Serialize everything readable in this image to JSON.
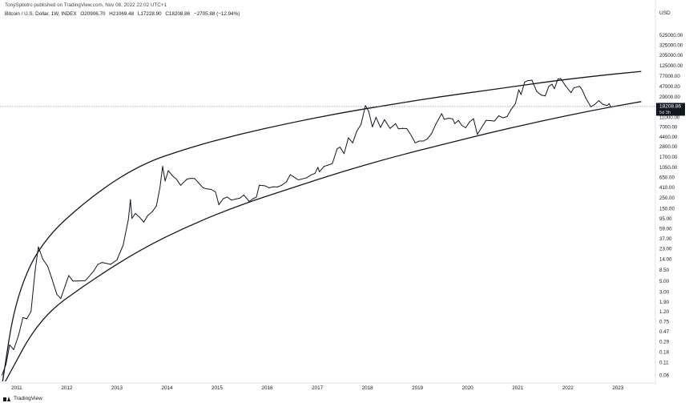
{
  "header": {
    "attribution": "TonySpilotro published on TradingView.com, Nov 08, 2022 22:02 UTC+1",
    "symbol": "Bitcoin / U.S. Dollar, 1W, INDEX",
    "open": "O20906.70",
    "high": "H21069.48",
    "low": "L17228.90",
    "close": "C18208.86",
    "change": "−2705.88 (−12.94%)"
  },
  "footer": {
    "brand": "TradingView"
  },
  "price_label": {
    "value": "18208.86",
    "countdown": "5d 3h"
  },
  "colors": {
    "line": "#131722",
    "axis_text": "#131722",
    "grid": "#e0e3eb",
    "label_bg": "#131722",
    "hline": "#787b86"
  },
  "chart_data": {
    "type": "line",
    "currency": "USD",
    "y_scale": "log",
    "ylim": [
      0.045,
      1100000
    ],
    "xlim": [
      "2010-09-01",
      "2023-10-01"
    ],
    "grid": false,
    "ytick_labels": [
      "525000.00",
      "325000.00",
      "205000.00",
      "125000.00",
      "77000.00",
      "47000.00",
      "29000.00",
      "11000.00",
      "7000.00",
      "4400.00",
      "2800.00",
      "1700.00",
      "1050.00",
      "650.00",
      "410.00",
      "250.00",
      "150.00",
      "95.00",
      "59.00",
      "37.00",
      "23.00",
      "14.00",
      "8.50",
      "5.00",
      "3.00",
      "1.90",
      "1.20",
      "0.75",
      "0.47",
      "0.29",
      "0.18",
      "0.11",
      "0.06"
    ],
    "xtick_labels": [
      "2011",
      "2012",
      "2013",
      "2014",
      "2015",
      "2016",
      "2017",
      "2018",
      "2019",
      "2020",
      "2021",
      "2022",
      "2023"
    ],
    "series": [
      {
        "values": [
          [
            "2010-09-15",
            0.06
          ],
          [
            "2010-10-15",
            0.1
          ],
          [
            "2010-11-10",
            0.25
          ],
          [
            "2010-12-10",
            0.2
          ],
          [
            "2011-01-15",
            0.4
          ],
          [
            "2011-02-15",
            0.9
          ],
          [
            "2011-03-15",
            0.85
          ],
          [
            "2011-04-15",
            1.2
          ],
          [
            "2011-05-15",
            8
          ],
          [
            "2011-06-08",
            25
          ],
          [
            "2011-07-10",
            14
          ],
          [
            "2011-08-15",
            10
          ],
          [
            "2011-09-15",
            5.5
          ],
          [
            "2011-10-20",
            2.7
          ],
          [
            "2011-11-18",
            2.2
          ],
          [
            "2011-12-20",
            4
          ],
          [
            "2012-01-15",
            6.5
          ],
          [
            "2012-02-15",
            5
          ],
          [
            "2012-03-15",
            5
          ],
          [
            "2012-05-15",
            5.1
          ],
          [
            "2012-07-15",
            8
          ],
          [
            "2012-08-15",
            11
          ],
          [
            "2012-09-15",
            12
          ],
          [
            "2012-11-15",
            11
          ],
          [
            "2012-12-31",
            13.5
          ],
          [
            "2013-02-15",
            27
          ],
          [
            "2013-03-25",
            90
          ],
          [
            "2013-04-09",
            230
          ],
          [
            "2013-04-20",
            95
          ],
          [
            "2013-05-15",
            120
          ],
          [
            "2013-06-15",
            100
          ],
          [
            "2013-07-15",
            80
          ],
          [
            "2013-08-15",
            110
          ],
          [
            "2013-09-15",
            130
          ],
          [
            "2013-10-15",
            170
          ],
          [
            "2013-11-10",
            400
          ],
          [
            "2013-11-30",
            1100
          ],
          [
            "2013-12-18",
            550
          ],
          [
            "2014-01-10",
            900
          ],
          [
            "2014-02-10",
            700
          ],
          [
            "2014-03-10",
            600
          ],
          [
            "2014-04-10",
            450
          ],
          [
            "2014-05-25",
            600
          ],
          [
            "2014-06-15",
            620
          ],
          [
            "2014-07-20",
            620
          ],
          [
            "2014-08-20",
            500
          ],
          [
            "2014-09-20",
            400
          ],
          [
            "2014-10-20",
            380
          ],
          [
            "2014-11-20",
            370
          ],
          [
            "2014-12-20",
            330
          ],
          [
            "2015-01-14",
            180
          ],
          [
            "2015-02-15",
            240
          ],
          [
            "2015-03-15",
            260
          ],
          [
            "2015-04-15",
            225
          ],
          [
            "2015-05-15",
            235
          ],
          [
            "2015-06-15",
            245
          ],
          [
            "2015-07-15",
            285
          ],
          [
            "2015-08-24",
            210
          ],
          [
            "2015-09-15",
            235
          ],
          [
            "2015-10-15",
            260
          ],
          [
            "2015-11-04",
            450
          ],
          [
            "2015-12-15",
            440
          ],
          [
            "2016-01-15",
            400
          ],
          [
            "2016-02-15",
            420
          ],
          [
            "2016-03-15",
            415
          ],
          [
            "2016-04-15",
            450
          ],
          [
            "2016-05-20",
            530
          ],
          [
            "2016-06-17",
            740
          ],
          [
            "2016-07-15",
            660
          ],
          [
            "2016-08-15",
            580
          ],
          [
            "2016-09-15",
            610
          ],
          [
            "2016-10-15",
            640
          ],
          [
            "2016-11-15",
            730
          ],
          [
            "2016-12-15",
            790
          ],
          [
            "2017-01-05",
            1050
          ],
          [
            "2017-01-15",
            850
          ],
          [
            "2017-02-20",
            1100
          ],
          [
            "2017-03-15",
            1150
          ],
          [
            "2017-04-20",
            1250
          ],
          [
            "2017-05-25",
            2500
          ],
          [
            "2017-06-15",
            2700
          ],
          [
            "2017-07-15",
            2000
          ],
          [
            "2017-08-15",
            4200
          ],
          [
            "2017-09-15",
            3300
          ],
          [
            "2017-10-15",
            5700
          ],
          [
            "2017-11-15",
            7800
          ],
          [
            "2017-12-17",
            19000
          ],
          [
            "2018-01-10",
            14500
          ],
          [
            "2018-02-06",
            7000
          ],
          [
            "2018-03-05",
            11000
          ],
          [
            "2018-04-06",
            6800
          ],
          [
            "2018-05-05",
            9800
          ],
          [
            "2018-06-15",
            6500
          ],
          [
            "2018-07-25",
            8200
          ],
          [
            "2018-08-15",
            6400
          ],
          [
            "2018-09-15",
            6500
          ],
          [
            "2018-10-15",
            6450
          ],
          [
            "2018-11-20",
            4500
          ],
          [
            "2018-12-15",
            3300
          ],
          [
            "2019-01-15",
            3600
          ],
          [
            "2019-02-15",
            3600
          ],
          [
            "2019-03-15",
            4000
          ],
          [
            "2019-04-15",
            5200
          ],
          [
            "2019-05-15",
            8000
          ],
          [
            "2019-06-26",
            13000
          ],
          [
            "2019-07-15",
            10000
          ],
          [
            "2019-08-15",
            10500
          ],
          [
            "2019-09-15",
            10200
          ],
          [
            "2019-09-30",
            8200
          ],
          [
            "2019-10-27",
            9500
          ],
          [
            "2019-11-20",
            7500
          ],
          [
            "2019-12-18",
            6700
          ],
          [
            "2020-01-15",
            8800
          ],
          [
            "2020-02-13",
            10300
          ],
          [
            "2020-03-12",
            4900
          ],
          [
            "2020-04-15",
            7000
          ],
          [
            "2020-05-15",
            9500
          ],
          [
            "2020-06-15",
            9400
          ],
          [
            "2020-07-15",
            9200
          ],
          [
            "2020-08-15",
            11800
          ],
          [
            "2020-09-15",
            10700
          ],
          [
            "2020-10-15",
            11400
          ],
          [
            "2020-11-15",
            16000
          ],
          [
            "2020-12-15",
            21000
          ],
          [
            "2021-01-08",
            40000
          ],
          [
            "2021-01-25",
            32000
          ],
          [
            "2021-02-20",
            57000
          ],
          [
            "2021-03-13",
            61000
          ],
          [
            "2021-04-14",
            63000
          ],
          [
            "2021-05-19",
            37000
          ],
          [
            "2021-06-22",
            31000
          ],
          [
            "2021-07-20",
            30000
          ],
          [
            "2021-08-15",
            47000
          ],
          [
            "2021-09-07",
            52000
          ],
          [
            "2021-09-25",
            42000
          ],
          [
            "2021-10-20",
            66000
          ],
          [
            "2021-11-10",
            68000
          ],
          [
            "2021-12-15",
            48000
          ],
          [
            "2022-01-24",
            35000
          ],
          [
            "2022-02-15",
            44000
          ],
          [
            "2022-03-28",
            47000
          ],
          [
            "2022-04-15",
            40000
          ],
          [
            "2022-05-12",
            27000
          ],
          [
            "2022-06-18",
            18000
          ],
          [
            "2022-07-15",
            20000
          ],
          [
            "2022-08-15",
            24000
          ],
          [
            "2022-09-15",
            20000
          ],
          [
            "2022-10-15",
            19200
          ],
          [
            "2022-10-29",
            20900
          ],
          [
            "2022-11-08",
            18208.86
          ]
        ]
      }
    ],
    "annotations": [
      {
        "type": "trendline",
        "name": "upper-curve",
        "points": [
          [
            "2010-09-20",
            0.045
          ],
          [
            "2010-12-20",
            2
          ],
          [
            "2011-06-20",
            30
          ],
          [
            "2012-06-20",
            260
          ],
          [
            "2013-06-20",
            1200
          ],
          [
            "2014-06-20",
            2700
          ],
          [
            "2015-06-20",
            5000
          ],
          [
            "2016-06-20",
            8500
          ],
          [
            "2017-06-20",
            13500
          ],
          [
            "2018-06-20",
            20000
          ],
          [
            "2019-06-20",
            29000
          ],
          [
            "2020-06-20",
            40000
          ],
          [
            "2021-06-20",
            56000
          ],
          [
            "2022-06-20",
            75000
          ],
          [
            "2023-06-20",
            95000
          ]
        ]
      },
      {
        "type": "trendline",
        "name": "lower-curve",
        "points": [
          [
            "2010-10-10",
            0.045
          ],
          [
            "2011-06-20",
            0.9
          ],
          [
            "2012-06-20",
            5
          ],
          [
            "2013-06-20",
            22
          ],
          [
            "2014-06-20",
            70
          ],
          [
            "2015-06-20",
            180
          ],
          [
            "2016-06-20",
            390
          ],
          [
            "2017-06-20",
            840
          ],
          [
            "2018-06-20",
            1650
          ],
          [
            "2019-06-20",
            3000
          ],
          [
            "2020-06-20",
            5400
          ],
          [
            "2021-06-20",
            9200
          ],
          [
            "2022-06-20",
            15000
          ],
          [
            "2023-06-20",
            23000
          ]
        ]
      },
      {
        "type": "hline",
        "name": "last-price-line",
        "value": 18208.86
      }
    ]
  }
}
